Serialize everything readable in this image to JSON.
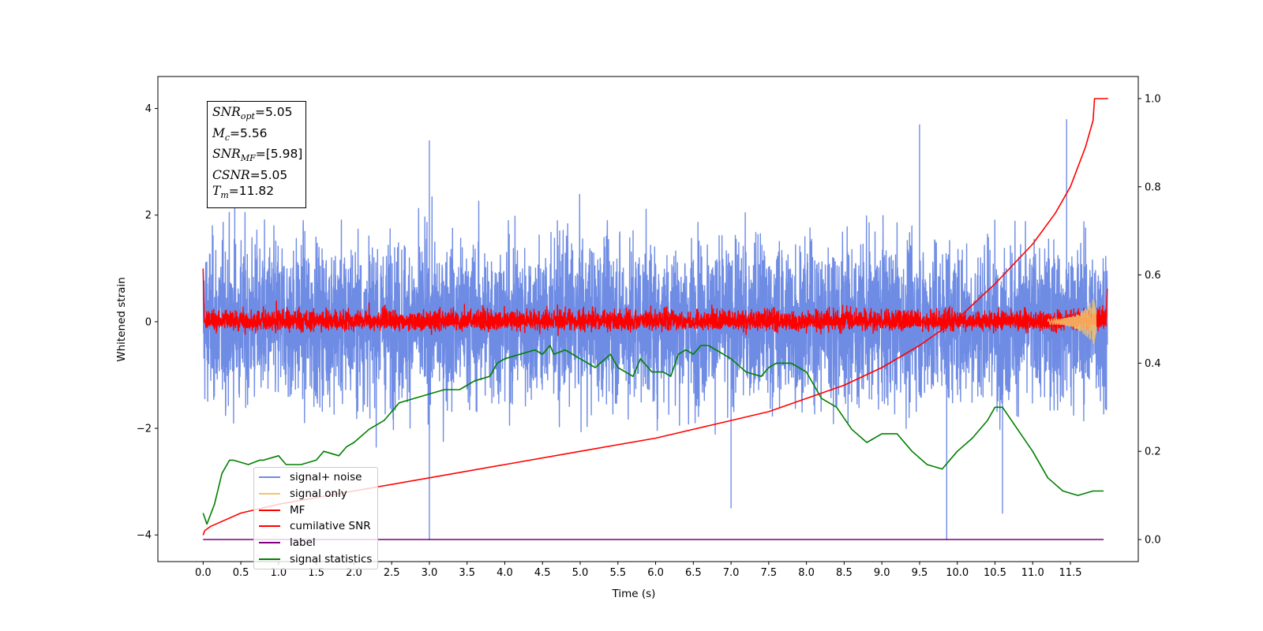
{
  "chart_data": {
    "type": "line",
    "xlabel": "Time (s)",
    "ylabel": "Whitened strain",
    "xlim": [
      -0.6,
      12.4
    ],
    "ylim": [
      -4.5,
      4.6
    ],
    "y2lim": [
      -0.05,
      1.05
    ],
    "x_ticks": [
      "0.0",
      "0.5",
      "1.0",
      "1.5",
      "2.0",
      "2.5",
      "3.0",
      "3.5",
      "4.0",
      "4.5",
      "5.0",
      "5.5",
      "6.0",
      "6.5",
      "7.0",
      "7.5",
      "8.0",
      "8.5",
      "9.0",
      "9.5",
      "10.0",
      "10.5",
      "11.0",
      "11.5"
    ],
    "y_ticks": [
      "−4",
      "−2",
      "0",
      "2",
      "4"
    ],
    "y2_ticks": [
      "0.0",
      "0.2",
      "0.4",
      "0.6",
      "0.8",
      "1.0"
    ],
    "grid": false,
    "legend_position": "lower-left",
    "annotation": {
      "snr_opt": "=5.05",
      "mc": "=5.56",
      "snr_mf": "=[5.98]",
      "csnr": "=5.05",
      "tm": "=11.82"
    },
    "series": [
      {
        "name": "signal+ noise",
        "color": "#6f8ce5",
        "axis": "left",
        "description_values": {
          "x_range": [
            0.0,
            11.99
          ],
          "y_range": [
            -4.1,
            4.2
          ]
        }
      },
      {
        "name": "signal only",
        "color": "#f5c36b",
        "axis": "left",
        "x": [
          11.3,
          11.5,
          11.6,
          11.7,
          11.75,
          11.8,
          11.82,
          11.84
        ],
        "y": [
          0.05,
          0.1,
          0.15,
          -0.2,
          0.3,
          -0.35,
          0.45,
          -0.4
        ]
      },
      {
        "name": "MF",
        "color": "#ff0000",
        "axis": "left",
        "description_values": {
          "x_range": [
            0.0,
            11.99
          ],
          "y_range": [
            -0.3,
            1.0
          ]
        }
      },
      {
        "name": "cumilative SNR",
        "color": "#ff0000",
        "axis": "right",
        "x": [
          0.0,
          0.02,
          0.1,
          0.5,
          1.0,
          2.0,
          3.0,
          4.0,
          5.0,
          6.0,
          7.0,
          7.5,
          8.0,
          8.5,
          9.0,
          9.5,
          10.0,
          10.5,
          11.0,
          11.3,
          11.5,
          11.7,
          11.8,
          11.82,
          12.0
        ],
        "y": [
          0.01,
          0.02,
          0.03,
          0.06,
          0.08,
          0.11,
          0.14,
          0.17,
          0.2,
          0.23,
          0.27,
          0.29,
          0.32,
          0.35,
          0.39,
          0.44,
          0.5,
          0.58,
          0.67,
          0.74,
          0.8,
          0.89,
          0.95,
          1.0,
          1.0
        ]
      },
      {
        "name": "label",
        "color": "#7f007f",
        "axis": "right",
        "x": [
          0.0,
          11.94
        ],
        "y": [
          0.0,
          0.0
        ]
      },
      {
        "name": "signal statistics",
        "color": "#008000",
        "axis": "right",
        "x": [
          0.0,
          0.05,
          0.15,
          0.25,
          0.35,
          0.4,
          0.6,
          0.75,
          0.8,
          1.0,
          1.1,
          1.3,
          1.5,
          1.6,
          1.8,
          1.9,
          2.0,
          2.2,
          2.4,
          2.6,
          2.8,
          3.0,
          3.2,
          3.4,
          3.6,
          3.8,
          3.9,
          4.0,
          4.2,
          4.4,
          4.5,
          4.6,
          4.65,
          4.8,
          5.0,
          5.2,
          5.4,
          5.5,
          5.7,
          5.8,
          5.95,
          6.1,
          6.2,
          6.3,
          6.4,
          6.5,
          6.6,
          6.7,
          6.8,
          7.0,
          7.2,
          7.4,
          7.5,
          7.6,
          7.8,
          8.0,
          8.2,
          8.4,
          8.6,
          8.8,
          9.0,
          9.2,
          9.4,
          9.6,
          9.8,
          10.0,
          10.2,
          10.4,
          10.5,
          10.6,
          10.8,
          11.0,
          11.2,
          11.4,
          11.6,
          11.8,
          11.94
        ],
        "y": [
          0.06,
          0.035,
          0.08,
          0.15,
          0.18,
          0.18,
          0.17,
          0.18,
          0.18,
          0.19,
          0.17,
          0.17,
          0.18,
          0.2,
          0.19,
          0.21,
          0.22,
          0.25,
          0.27,
          0.31,
          0.32,
          0.33,
          0.34,
          0.34,
          0.36,
          0.37,
          0.4,
          0.41,
          0.42,
          0.43,
          0.42,
          0.44,
          0.42,
          0.43,
          0.41,
          0.39,
          0.42,
          0.39,
          0.37,
          0.41,
          0.38,
          0.38,
          0.37,
          0.42,
          0.43,
          0.42,
          0.44,
          0.44,
          0.43,
          0.41,
          0.38,
          0.37,
          0.39,
          0.4,
          0.4,
          0.38,
          0.32,
          0.3,
          0.25,
          0.22,
          0.24,
          0.24,
          0.2,
          0.17,
          0.16,
          0.2,
          0.23,
          0.27,
          0.3,
          0.3,
          0.25,
          0.2,
          0.14,
          0.11,
          0.1,
          0.11,
          0.11
        ]
      }
    ]
  }
}
